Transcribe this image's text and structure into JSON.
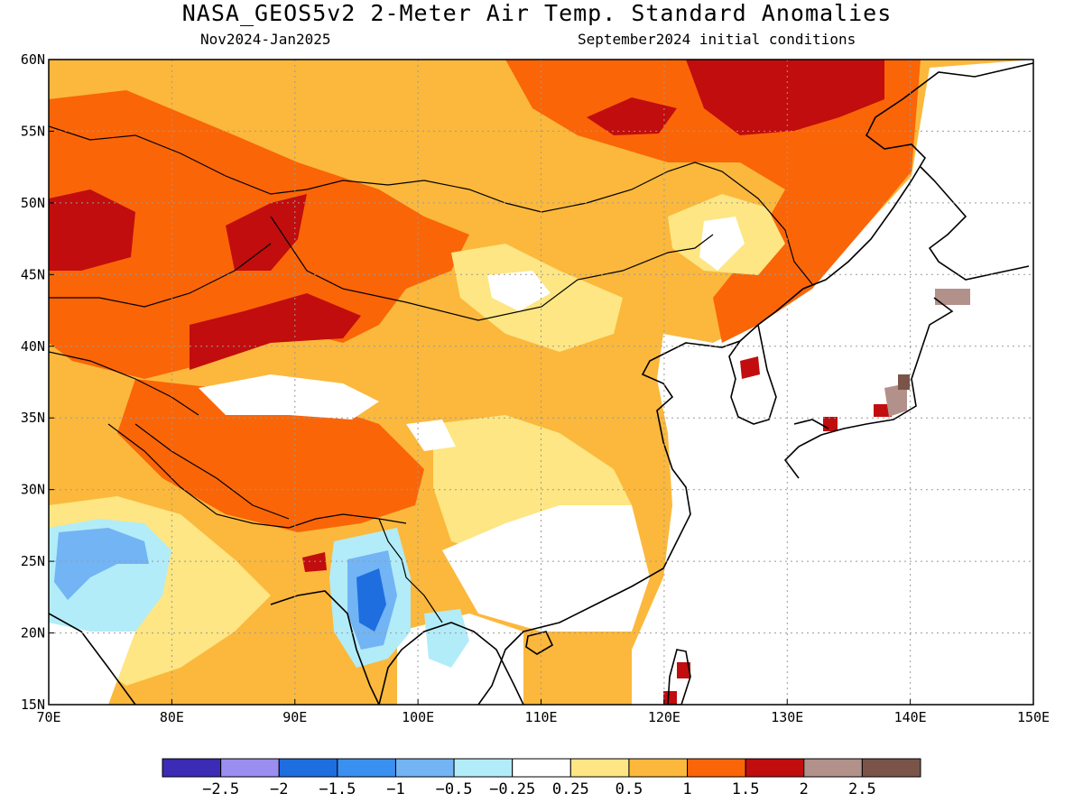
{
  "header": {
    "title": "NASA_GEOS5v2 2-Meter Air Temp. Standard Anomalies",
    "period": "Nov2024-Jan2025",
    "init": "September2024 initial conditions"
  },
  "map": {
    "lon_range": [
      70,
      150
    ],
    "lat_range": [
      15,
      60
    ],
    "lon_ticks": [
      "70E",
      "80E",
      "90E",
      "100E",
      "110E",
      "120E",
      "130E",
      "140E",
      "150E"
    ],
    "lat_ticks": [
      "15N",
      "20N",
      "25N",
      "30N",
      "35N",
      "40N",
      "45N",
      "50N",
      "55N",
      "60N"
    ],
    "gridlines": "dotted"
  },
  "colorbar": {
    "colors": [
      "#3b2bb5",
      "#9b8ef0",
      "#1e6ee0",
      "#3a90f0",
      "#72b4f4",
      "#b2ecf8",
      "#ffffff",
      "#fde683",
      "#fbb83c",
      "#fa6508",
      "#c10d0d",
      "#b2918a",
      "#7a5449"
    ],
    "labels": [
      "-2.5",
      "-2",
      "-1.5",
      "-1",
      "-0.5",
      "-0.25",
      "0.25",
      "0.5",
      "1",
      "1.5",
      "2",
      "2.5"
    ]
  }
}
